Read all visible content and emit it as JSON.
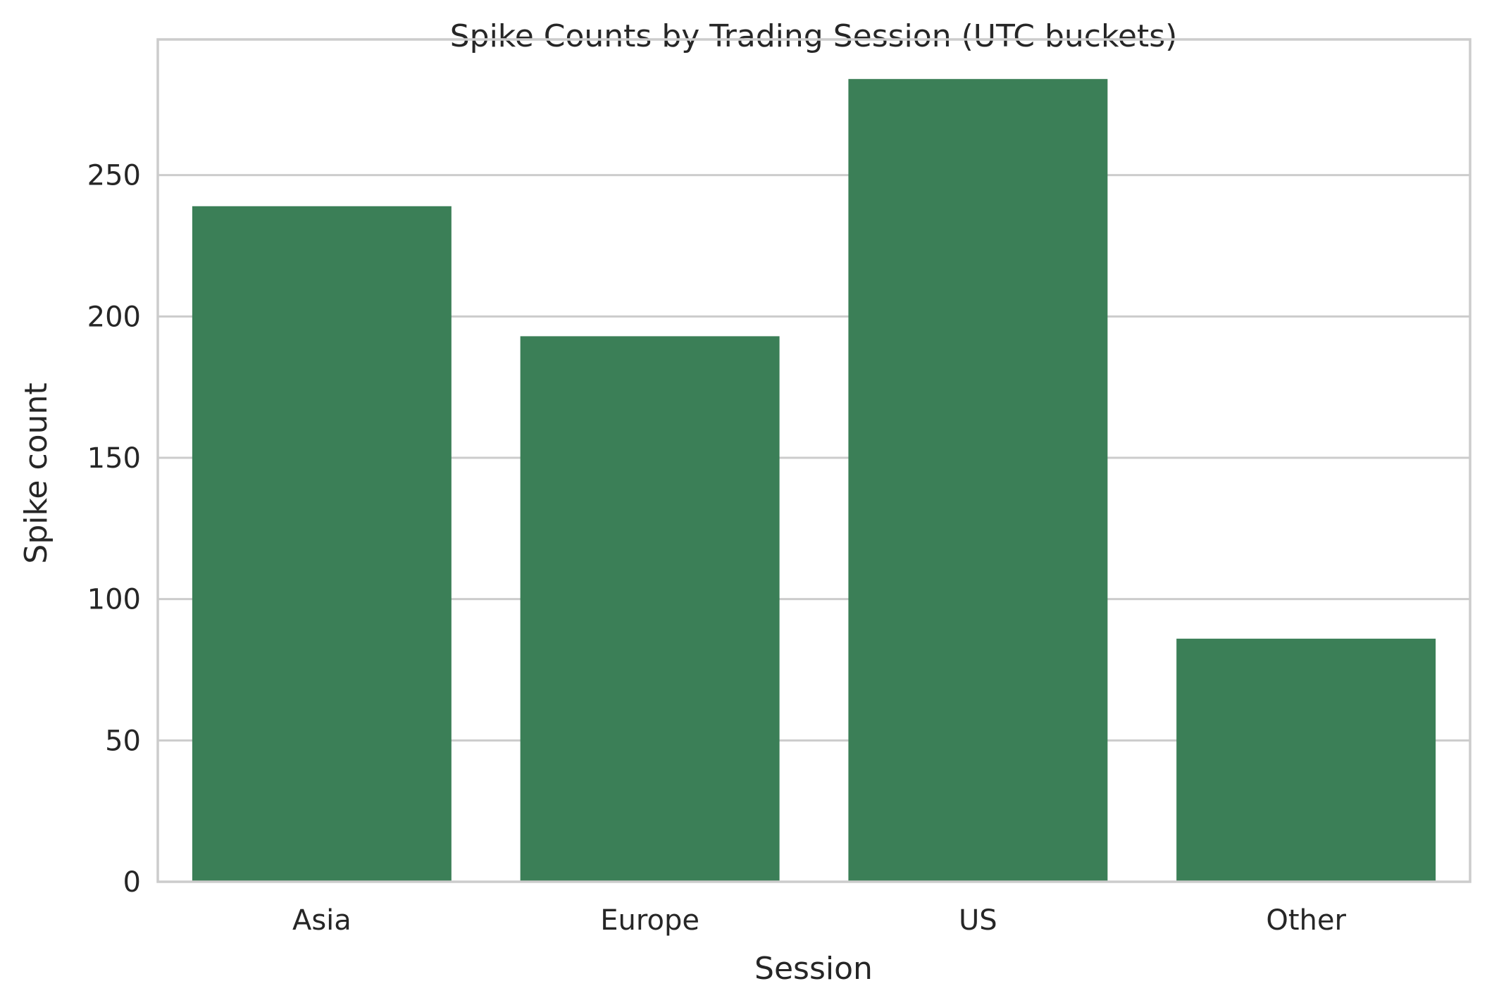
{
  "chart_data": {
    "type": "bar",
    "title": "Spike Counts by Trading Session (UTC buckets)",
    "xlabel": "Session",
    "ylabel": "Spike count",
    "categories": [
      "Asia",
      "Europe",
      "US",
      "Other"
    ],
    "values": [
      239,
      193,
      284,
      86
    ],
    "ylim": [
      0,
      298
    ],
    "yticks": [
      0,
      50,
      100,
      150,
      200,
      250
    ],
    "grid": "horizontal",
    "bar_color": "#3b7f57",
    "legend": "none"
  }
}
